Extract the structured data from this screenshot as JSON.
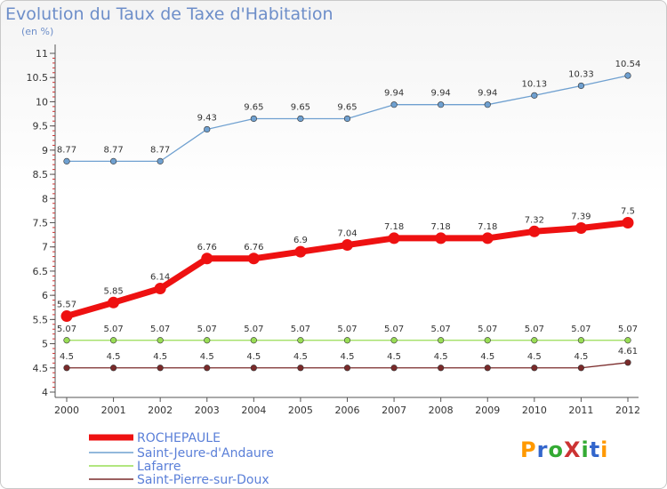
{
  "header": {
    "title": "Evolution du Taux de Taxe d'Habitation",
    "unit": "(en %)"
  },
  "logo": {
    "text": "ProXiti",
    "colors": [
      "#ff9900",
      "#3366cc",
      "#33aa33",
      "#cc3333",
      "#33aa33",
      "#3366cc",
      "#ff9900"
    ]
  },
  "chart_data": {
    "type": "line",
    "title": "Evolution du Taux de Taxe d'Habitation",
    "ylabel": "(en %)",
    "xlabel": "",
    "x": [
      "2000",
      "2001",
      "2002",
      "2003",
      "2004",
      "2005",
      "2006",
      "2007",
      "2008",
      "2009",
      "2010",
      "2011",
      "2012"
    ],
    "ylim": [
      4,
      11
    ],
    "yticks": [
      "4",
      "4.5",
      "5",
      "5.5",
      "6",
      "6.5",
      "7",
      "7.5",
      "8",
      "8.5",
      "9",
      "9.5",
      "10",
      "10.5",
      "11"
    ],
    "grid": false,
    "legend_position": "bottom-left",
    "series": [
      {
        "name": "ROCHEPAULE",
        "color": "#ee1111",
        "values": [
          5.57,
          5.85,
          6.14,
          6.76,
          6.76,
          6.9,
          7.04,
          7.18,
          7.18,
          7.18,
          7.32,
          7.39,
          7.5
        ],
        "labels": [
          "5.57",
          "5.85",
          "6.14",
          "6.76",
          "6.76",
          "6.9",
          "7.04",
          "7.18",
          "7.18",
          "7.18",
          "7.32",
          "7.39",
          "7.5"
        ]
      },
      {
        "name": "Saint-Jeure-d'Andaure",
        "color": "#6fa0d0",
        "values": [
          8.77,
          8.77,
          8.77,
          9.43,
          9.65,
          9.65,
          9.65,
          9.94,
          9.94,
          9.94,
          10.13,
          10.33,
          10.54
        ],
        "labels": [
          "8.77",
          "8.77",
          "8.77",
          "9.43",
          "9.65",
          "9.65",
          "9.65",
          "9.94",
          "9.94",
          "9.94",
          "10.13",
          "10.33",
          "10.54"
        ]
      },
      {
        "name": "Lafarre",
        "color": "#99dd55",
        "values": [
          5.07,
          5.07,
          5.07,
          5.07,
          5.07,
          5.07,
          5.07,
          5.07,
          5.07,
          5.07,
          5.07,
          5.07,
          5.07
        ],
        "labels": [
          "5.07",
          "5.07",
          "5.07",
          "5.07",
          "5.07",
          "5.07",
          "5.07",
          "5.07",
          "5.07",
          "5.07",
          "5.07",
          "5.07",
          "5.07"
        ]
      },
      {
        "name": "Saint-Pierre-sur-Doux",
        "color": "#7a2a2a",
        "values": [
          4.5,
          4.5,
          4.5,
          4.5,
          4.5,
          4.5,
          4.5,
          4.5,
          4.5,
          4.5,
          4.5,
          4.5,
          4.61
        ],
        "labels": [
          "4.5",
          "4.5",
          "4.5",
          "4.5",
          "4.5",
          "4.5",
          "4.5",
          "4.5",
          "4.5",
          "4.5",
          "4.5",
          "4.5",
          "4.61"
        ]
      }
    ]
  }
}
